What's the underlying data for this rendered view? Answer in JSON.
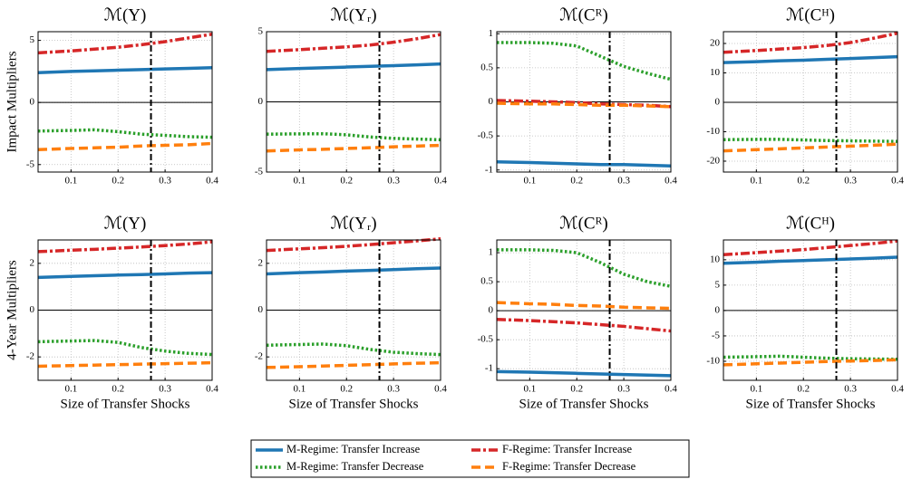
{
  "chart_data": [
    {
      "type": "line",
      "title": "ℳ(Y)",
      "ylabel": "Impact Multipliers",
      "x": [
        0.03,
        0.1,
        0.15,
        0.2,
        0.25,
        0.3,
        0.35,
        0.4
      ],
      "xlim": [
        0.03,
        0.4
      ],
      "xticks": [
        0.1,
        0.2,
        0.3,
        0.4
      ],
      "ylim": [
        -5.6,
        5.7
      ],
      "yticks": [
        5,
        0,
        -5
      ],
      "grid": true,
      "vline": 0.27,
      "series": [
        {
          "name": "M-Regime: Transfer Increase",
          "color": "#1f77b4",
          "style": "solid",
          "values": [
            2.4,
            2.5,
            2.55,
            2.6,
            2.65,
            2.7,
            2.75,
            2.8
          ]
        },
        {
          "name": "M-Regime: Transfer Decrease",
          "color": "#2ca02c",
          "style": "dot",
          "values": [
            -2.3,
            -2.25,
            -2.2,
            -2.35,
            -2.55,
            -2.65,
            -2.75,
            -2.8
          ]
        },
        {
          "name": "F-Regime: Transfer Increase",
          "color": "#d62728",
          "style": "dashdot",
          "values": [
            4.0,
            4.15,
            4.3,
            4.45,
            4.65,
            4.9,
            5.2,
            5.5
          ]
        },
        {
          "name": "F-Regime: Transfer Decrease",
          "color": "#ff7f0e",
          "style": "dash",
          "values": [
            -3.8,
            -3.7,
            -3.65,
            -3.6,
            -3.5,
            -3.45,
            -3.4,
            -3.3
          ]
        }
      ]
    },
    {
      "type": "line",
      "title": "ℳ(Yᵣ)",
      "x": [
        0.03,
        0.1,
        0.15,
        0.2,
        0.25,
        0.3,
        0.35,
        0.4
      ],
      "xlim": [
        0.03,
        0.4
      ],
      "xticks": [
        0.1,
        0.2,
        0.3,
        0.4
      ],
      "ylim": [
        -5,
        5
      ],
      "yticks": [
        5,
        0,
        -5
      ],
      "grid": true,
      "vline": 0.27,
      "series": [
        {
          "name": "M-Regime: Transfer Increase",
          "color": "#1f77b4",
          "style": "solid",
          "values": [
            2.3,
            2.38,
            2.43,
            2.48,
            2.53,
            2.58,
            2.64,
            2.7
          ]
        },
        {
          "name": "M-Regime: Transfer Decrease",
          "color": "#2ca02c",
          "style": "dot",
          "values": [
            -2.3,
            -2.28,
            -2.27,
            -2.35,
            -2.5,
            -2.6,
            -2.65,
            -2.7
          ]
        },
        {
          "name": "F-Regime: Transfer Increase",
          "color": "#d62728",
          "style": "dashdot",
          "values": [
            3.6,
            3.72,
            3.82,
            3.92,
            4.05,
            4.25,
            4.5,
            4.8
          ]
        },
        {
          "name": "F-Regime: Transfer Decrease",
          "color": "#ff7f0e",
          "style": "dash",
          "values": [
            -3.5,
            -3.42,
            -3.38,
            -3.32,
            -3.27,
            -3.2,
            -3.15,
            -3.1
          ]
        }
      ]
    },
    {
      "type": "line",
      "title": "ℳ(Cᴿ)",
      "x": [
        0.03,
        0.1,
        0.15,
        0.2,
        0.25,
        0.3,
        0.35,
        0.4
      ],
      "xlim": [
        0.03,
        0.4
      ],
      "xticks": [
        0.1,
        0.2,
        0.3,
        0.4
      ],
      "ylim": [
        -1.03,
        1.03
      ],
      "yticks": [
        1,
        0.5,
        0,
        -0.5,
        -1
      ],
      "grid": true,
      "vline": 0.27,
      "series": [
        {
          "name": "M-Regime: Transfer Increase",
          "color": "#1f77b4",
          "style": "solid",
          "values": [
            -0.88,
            -0.89,
            -0.9,
            -0.91,
            -0.92,
            -0.92,
            -0.93,
            -0.94
          ]
        },
        {
          "name": "M-Regime: Transfer Decrease",
          "color": "#2ca02c",
          "style": "dot",
          "values": [
            0.87,
            0.87,
            0.86,
            0.82,
            0.67,
            0.52,
            0.42,
            0.33
          ]
        },
        {
          "name": "F-Regime: Transfer Increase",
          "color": "#d62728",
          "style": "dashdot",
          "values": [
            0.02,
            0.01,
            0.0,
            -0.01,
            -0.03,
            -0.04,
            -0.05,
            -0.07
          ]
        },
        {
          "name": "F-Regime: Transfer Decrease",
          "color": "#ff7f0e",
          "style": "dash",
          "values": [
            -0.02,
            -0.03,
            -0.03,
            -0.04,
            -0.05,
            -0.05,
            -0.06,
            -0.07
          ]
        }
      ]
    },
    {
      "type": "line",
      "title": "ℳ(Cᴴ)",
      "x": [
        0.03,
        0.1,
        0.15,
        0.2,
        0.25,
        0.3,
        0.35,
        0.4
      ],
      "xlim": [
        0.03,
        0.4
      ],
      "xticks": [
        0.1,
        0.2,
        0.3,
        0.4
      ],
      "ylim": [
        -23.7,
        24
      ],
      "yticks": [
        20,
        10,
        0,
        -10,
        -20
      ],
      "grid": true,
      "vline": 0.27,
      "series": [
        {
          "name": "M-Regime: Transfer Increase",
          "color": "#1f77b4",
          "style": "solid",
          "values": [
            13.5,
            13.8,
            14.1,
            14.3,
            14.6,
            14.9,
            15.2,
            15.5
          ]
        },
        {
          "name": "M-Regime: Transfer Decrease",
          "color": "#2ca02c",
          "style": "dot",
          "values": [
            -12.7,
            -12.6,
            -12.6,
            -12.8,
            -13.0,
            -13.1,
            -13.2,
            -13.3
          ]
        },
        {
          "name": "F-Regime: Transfer Increase",
          "color": "#d62728",
          "style": "dashdot",
          "values": [
            17,
            17.6,
            18.1,
            18.6,
            19.3,
            20.3,
            21.8,
            23.5
          ]
        },
        {
          "name": "F-Regime: Transfer Decrease",
          "color": "#ff7f0e",
          "style": "dash",
          "values": [
            -16.5,
            -16.1,
            -15.8,
            -15.5,
            -15.2,
            -14.9,
            -14.6,
            -14.2
          ]
        }
      ]
    },
    {
      "type": "line",
      "title": "ℳ(Y)",
      "ylabel": "4-Year Multipliers",
      "xlabel": "Size of Transfer Shocks",
      "x": [
        0.03,
        0.1,
        0.15,
        0.2,
        0.25,
        0.3,
        0.35,
        0.4
      ],
      "xlim": [
        0.03,
        0.4
      ],
      "xticks": [
        0.1,
        0.2,
        0.3,
        0.4
      ],
      "ylim": [
        -3,
        3
      ],
      "yticks": [
        2,
        0,
        -2
      ],
      "grid": true,
      "vline": 0.27,
      "series": [
        {
          "name": "M-Regime: Transfer Increase",
          "color": "#1f77b4",
          "style": "solid",
          "values": [
            1.4,
            1.44,
            1.47,
            1.5,
            1.52,
            1.55,
            1.58,
            1.6
          ]
        },
        {
          "name": "M-Regime: Transfer Decrease",
          "color": "#2ca02c",
          "style": "dot",
          "values": [
            -1.35,
            -1.32,
            -1.3,
            -1.38,
            -1.6,
            -1.75,
            -1.85,
            -1.9
          ]
        },
        {
          "name": "F-Regime: Transfer Increase",
          "color": "#d62728",
          "style": "dashdot",
          "values": [
            2.5,
            2.56,
            2.6,
            2.65,
            2.7,
            2.76,
            2.83,
            2.92
          ]
        },
        {
          "name": "F-Regime: Transfer Decrease",
          "color": "#ff7f0e",
          "style": "dash",
          "values": [
            -2.4,
            -2.37,
            -2.35,
            -2.33,
            -2.31,
            -2.29,
            -2.27,
            -2.25
          ]
        }
      ]
    },
    {
      "type": "line",
      "title": "ℳ(Yᵣ)",
      "xlabel": "Size of Transfer Shocks",
      "x": [
        0.03,
        0.1,
        0.15,
        0.2,
        0.25,
        0.3,
        0.35,
        0.4
      ],
      "xlim": [
        0.03,
        0.4
      ],
      "xticks": [
        0.1,
        0.2,
        0.3,
        0.4
      ],
      "ylim": [
        -3,
        3
      ],
      "yticks": [
        2,
        0,
        -2
      ],
      "grid": true,
      "vline": 0.27,
      "series": [
        {
          "name": "M-Regime: Transfer Increase",
          "color": "#1f77b4",
          "style": "solid",
          "values": [
            1.55,
            1.6,
            1.63,
            1.67,
            1.7,
            1.73,
            1.77,
            1.8
          ]
        },
        {
          "name": "M-Regime: Transfer Decrease",
          "color": "#2ca02c",
          "style": "dot",
          "values": [
            -1.5,
            -1.47,
            -1.45,
            -1.52,
            -1.68,
            -1.8,
            -1.86,
            -1.9
          ]
        },
        {
          "name": "F-Regime: Transfer Increase",
          "color": "#d62728",
          "style": "dashdot",
          "values": [
            2.55,
            2.62,
            2.67,
            2.73,
            2.8,
            2.88,
            2.96,
            3.05
          ]
        },
        {
          "name": "F-Regime: Transfer Decrease",
          "color": "#ff7f0e",
          "style": "dash",
          "values": [
            -2.45,
            -2.42,
            -2.39,
            -2.36,
            -2.33,
            -2.3,
            -2.27,
            -2.25
          ]
        }
      ]
    },
    {
      "type": "line",
      "title": "ℳ(Cᴿ)",
      "xlabel": "Size of Transfer Shocks",
      "x": [
        0.03,
        0.1,
        0.15,
        0.2,
        0.25,
        0.3,
        0.35,
        0.4
      ],
      "xlim": [
        0.03,
        0.4
      ],
      "xticks": [
        0.1,
        0.2,
        0.3,
        0.4
      ],
      "ylim": [
        -1.2,
        1.22
      ],
      "yticks": [
        1,
        0.5,
        0,
        -0.5,
        -1
      ],
      "grid": true,
      "vline": 0.27,
      "series": [
        {
          "name": "M-Regime: Transfer Increase",
          "color": "#1f77b4",
          "style": "solid",
          "values": [
            -1.05,
            -1.06,
            -1.07,
            -1.08,
            -1.09,
            -1.1,
            -1.11,
            -1.12
          ]
        },
        {
          "name": "M-Regime: Transfer Decrease",
          "color": "#2ca02c",
          "style": "dot",
          "values": [
            1.05,
            1.05,
            1.04,
            1.0,
            0.83,
            0.63,
            0.5,
            0.42
          ]
        },
        {
          "name": "F-Regime: Transfer Increase",
          "color": "#d62728",
          "style": "dashdot",
          "values": [
            -0.15,
            -0.17,
            -0.19,
            -0.21,
            -0.24,
            -0.27,
            -0.31,
            -0.35
          ]
        },
        {
          "name": "F-Regime: Transfer Decrease",
          "color": "#ff7f0e",
          "style": "dash",
          "values": [
            0.14,
            0.12,
            0.11,
            0.09,
            0.08,
            0.06,
            0.05,
            0.04
          ]
        }
      ]
    },
    {
      "type": "line",
      "title": "ℳ(Cᴴ)",
      "xlabel": "Size of Transfer Shocks",
      "x": [
        0.03,
        0.1,
        0.15,
        0.2,
        0.25,
        0.3,
        0.35,
        0.4
      ],
      "xlim": [
        0.03,
        0.4
      ],
      "xticks": [
        0.1,
        0.2,
        0.3,
        0.4
      ],
      "ylim": [
        -13.75,
        13.9
      ],
      "yticks": [
        10,
        5,
        0,
        -5,
        -10
      ],
      "grid": true,
      "vline": 0.27,
      "series": [
        {
          "name": "M-Regime: Transfer Increase",
          "color": "#1f77b4",
          "style": "solid",
          "values": [
            9.3,
            9.5,
            9.7,
            9.85,
            10.0,
            10.15,
            10.3,
            10.5
          ]
        },
        {
          "name": "M-Regime: Transfer Decrease",
          "color": "#2ca02c",
          "style": "dot",
          "values": [
            -9.2,
            -9.1,
            -9.0,
            -9.2,
            -9.4,
            -9.5,
            -9.55,
            -9.6
          ]
        },
        {
          "name": "F-Regime: Transfer Increase",
          "color": "#d62728",
          "style": "dashdot",
          "values": [
            11,
            11.4,
            11.7,
            12,
            12.4,
            12.8,
            13.2,
            13.7
          ]
        },
        {
          "name": "F-Regime: Transfer Decrease",
          "color": "#ff7f0e",
          "style": "dash",
          "values": [
            -10.7,
            -10.5,
            -10.35,
            -10.2,
            -10.05,
            -9.95,
            -9.85,
            -9.7
          ]
        }
      ]
    }
  ]
}
